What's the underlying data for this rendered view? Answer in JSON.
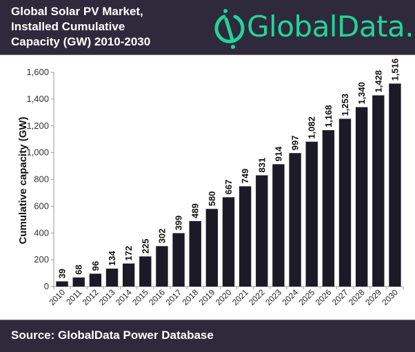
{
  "header": {
    "title_lines": [
      "Global Solar PV Market,",
      "Installed Cumulative",
      "Capacity (GW) 2010-2030"
    ],
    "logo_text": "GlobalData.",
    "logo_icon": "globaldata-logo-icon"
  },
  "footer": {
    "source": "Source: GlobalData Power Database"
  },
  "colors": {
    "background_dark": "#2e2a3c",
    "bar": "#1d1a27",
    "brand_green": "#23d49a",
    "axis": "#9a9a9a"
  },
  "chart_data": {
    "type": "bar",
    "title": "Global Solar PV Market, Installed Cumulative Capacity (GW) 2010-2030",
    "xlabel": "",
    "ylabel": "Cumulative capacity (GW)",
    "ylim": [
      0,
      1600
    ],
    "yticks": [
      0,
      200,
      400,
      600,
      800,
      1000,
      1200,
      1400,
      1600
    ],
    "ytick_labels": [
      "0",
      "200",
      "400",
      "600",
      "800",
      "1,000",
      "1,200",
      "1,400",
      "1,600"
    ],
    "grid": false,
    "legend": "none",
    "categories": [
      "2010",
      "2011",
      "2012",
      "2013",
      "2014",
      "2015",
      "2016",
      "2017",
      "2018",
      "2019",
      "2020",
      "2021",
      "2022",
      "2023",
      "2024",
      "2025",
      "2026",
      "2027",
      "2028",
      "2029",
      "2030"
    ],
    "values": [
      39,
      68,
      96,
      134,
      172,
      225,
      302,
      399,
      489,
      580,
      667,
      749,
      831,
      914,
      997,
      1082,
      1168,
      1253,
      1340,
      1428,
      1516
    ],
    "value_labels": [
      "39",
      "68",
      "96",
      "134",
      "172",
      "225",
      "302",
      "399",
      "489",
      "580",
      "667",
      "749",
      "831",
      "914",
      "997",
      "1,082",
      "1,168",
      "1,253",
      "1,340",
      "1,428",
      "1,516"
    ]
  }
}
